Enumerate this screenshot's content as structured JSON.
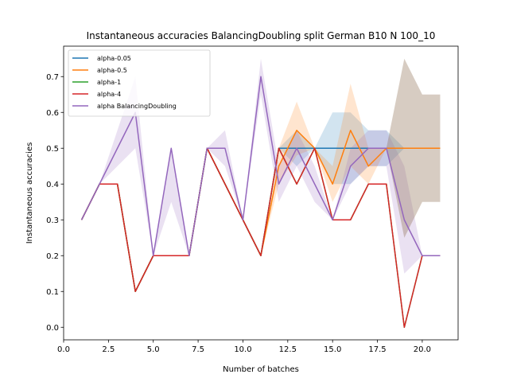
{
  "chart_data": {
    "type": "line",
    "title": "Instantaneous accuracies BalancingDoubling split German B10 N 100_10",
    "xlabel": "Number of batches",
    "ylabel": "Instantaneous accuracies",
    "xlim": [
      0,
      22.0
    ],
    "ylim": [
      -0.035,
      0.785
    ],
    "xticks": [
      0.0,
      2.5,
      5.0,
      7.5,
      10.0,
      12.5,
      15.0,
      17.5,
      20.0
    ],
    "xtick_labels": [
      "0.0",
      "2.5",
      "5.0",
      "7.5",
      "10.0",
      "12.5",
      "15.0",
      "17.5",
      "20.0"
    ],
    "yticks": [
      0.0,
      0.1,
      0.2,
      0.3,
      0.4,
      0.5,
      0.6,
      0.7
    ],
    "ytick_labels": [
      "0.0",
      "0.1",
      "0.2",
      "0.3",
      "0.4",
      "0.5",
      "0.6",
      "0.7"
    ],
    "legend_position": "top-left",
    "grid": false,
    "x": [
      1,
      2,
      3,
      4,
      5,
      6,
      7,
      8,
      9,
      10,
      11,
      12,
      13,
      14,
      15,
      16,
      17,
      18,
      19,
      20,
      21
    ],
    "series": [
      {
        "name": "alpha-0.05",
        "color": "#1f77b4",
        "values": [
          0.3,
          0.4,
          0.4,
          0.1,
          0.2,
          0.2,
          0.2,
          0.5,
          0.4,
          0.3,
          0.2,
          0.5,
          0.5,
          0.5,
          0.5,
          0.5,
          0.5,
          0.5,
          0.5,
          0.5,
          0.5
        ],
        "lower": [
          0.3,
          0.4,
          0.4,
          0.1,
          0.2,
          0.2,
          0.2,
          0.5,
          0.4,
          0.3,
          0.2,
          0.5,
          0.45,
          0.5,
          0.4,
          0.4,
          0.45,
          0.45,
          0.5,
          0.5,
          0.5
        ],
        "upper": [
          0.3,
          0.4,
          0.4,
          0.1,
          0.2,
          0.2,
          0.2,
          0.5,
          0.4,
          0.3,
          0.2,
          0.5,
          0.55,
          0.5,
          0.6,
          0.6,
          0.55,
          0.55,
          0.5,
          0.5,
          0.5
        ]
      },
      {
        "name": "alpha-0.5",
        "color": "#ff7f0e",
        "values": [
          0.3,
          0.4,
          0.4,
          0.1,
          0.2,
          0.2,
          0.2,
          0.5,
          0.4,
          0.3,
          0.2,
          0.45,
          0.55,
          0.5,
          0.4,
          0.55,
          0.45,
          0.5,
          0.5,
          0.5,
          0.5
        ],
        "lower": [
          0.3,
          0.4,
          0.4,
          0.1,
          0.2,
          0.2,
          0.2,
          0.5,
          0.4,
          0.3,
          0.2,
          0.4,
          0.48,
          0.5,
          0.35,
          0.45,
          0.4,
          0.5,
          0.5,
          0.5,
          0.5
        ],
        "upper": [
          0.3,
          0.4,
          0.4,
          0.1,
          0.2,
          0.2,
          0.2,
          0.5,
          0.4,
          0.3,
          0.2,
          0.5,
          0.63,
          0.5,
          0.45,
          0.68,
          0.5,
          0.5,
          0.5,
          0.5,
          0.5
        ]
      },
      {
        "name": "alpha-1",
        "color": "#2ca02c",
        "values": [
          0.3,
          0.4,
          0.4,
          0.1,
          0.2,
          0.2,
          0.2,
          0.5,
          0.4,
          0.3,
          0.2,
          0.5,
          0.4,
          0.5,
          0.3,
          0.3,
          0.4,
          0.4,
          0.0,
          0.2,
          0.2
        ],
        "lower": [
          0.3,
          0.4,
          0.4,
          0.1,
          0.2,
          0.2,
          0.2,
          0.5,
          0.4,
          0.3,
          0.2,
          0.5,
          0.4,
          0.5,
          0.3,
          0.3,
          0.4,
          0.4,
          0.0,
          0.2,
          0.2
        ],
        "upper": [
          0.3,
          0.4,
          0.4,
          0.1,
          0.2,
          0.2,
          0.2,
          0.5,
          0.4,
          0.3,
          0.2,
          0.5,
          0.4,
          0.5,
          0.3,
          0.3,
          0.4,
          0.4,
          0.0,
          0.2,
          0.2
        ]
      },
      {
        "name": "alpha-4",
        "color": "#d62728",
        "values": [
          0.3,
          0.4,
          0.4,
          0.1,
          0.2,
          0.2,
          0.2,
          0.5,
          0.4,
          0.3,
          0.2,
          0.5,
          0.4,
          0.5,
          0.3,
          0.3,
          0.4,
          0.4,
          0.0,
          0.2,
          0.2
        ],
        "lower": [
          0.3,
          0.4,
          0.4,
          0.1,
          0.2,
          0.2,
          0.2,
          0.5,
          0.4,
          0.3,
          0.2,
          0.5,
          0.4,
          0.5,
          0.3,
          0.3,
          0.4,
          0.4,
          0.0,
          0.2,
          0.2
        ],
        "upper": [
          0.3,
          0.4,
          0.4,
          0.1,
          0.2,
          0.2,
          0.2,
          0.5,
          0.4,
          0.3,
          0.2,
          0.5,
          0.4,
          0.5,
          0.3,
          0.3,
          0.4,
          0.4,
          0.0,
          0.2,
          0.2
        ]
      },
      {
        "name": "alpha BalancingDoubling",
        "color": "#9467bd",
        "values": [
          0.3,
          0.4,
          0.5,
          0.6,
          0.2,
          0.5,
          0.2,
          0.5,
          0.5,
          0.3,
          0.7,
          0.4,
          0.5,
          0.4,
          0.3,
          0.45,
          0.5,
          0.5,
          0.3,
          0.2,
          0.2
        ],
        "lower": [
          0.3,
          0.4,
          0.45,
          0.5,
          0.2,
          0.35,
          0.2,
          0.5,
          0.45,
          0.3,
          0.65,
          0.35,
          0.45,
          0.35,
          0.3,
          0.4,
          0.45,
          0.45,
          0.15,
          0.2,
          0.2
        ],
        "upper": [
          0.3,
          0.4,
          0.55,
          0.7,
          0.2,
          0.5,
          0.2,
          0.5,
          0.55,
          0.3,
          0.75,
          0.45,
          0.55,
          0.45,
          0.3,
          0.5,
          0.55,
          0.55,
          0.45,
          0.2,
          0.2
        ]
      }
    ],
    "extra_band": {
      "name": "",
      "color": "#8c6d4f",
      "x": [
        18,
        19,
        20,
        21
      ],
      "lower": [
        0.5,
        0.25,
        0.35,
        0.35
      ],
      "upper": [
        0.5,
        0.75,
        0.65,
        0.65
      ]
    }
  }
}
